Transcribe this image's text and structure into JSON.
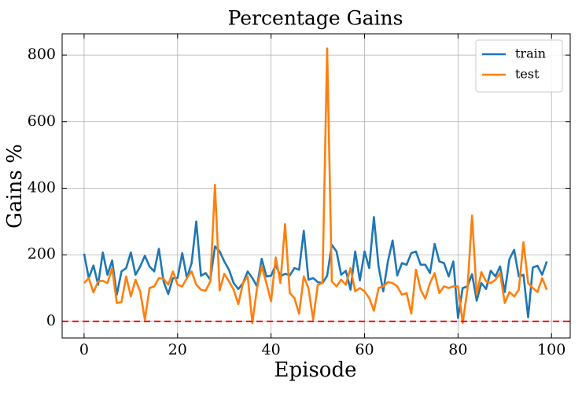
{
  "chart_data": {
    "type": "line",
    "title": "Percentage Gains",
    "xlabel": "Episode",
    "ylabel": "Gains %",
    "x": [
      0,
      1,
      2,
      3,
      4,
      5,
      6,
      7,
      8,
      9,
      10,
      11,
      12,
      13,
      14,
      15,
      16,
      17,
      18,
      19,
      20,
      21,
      22,
      23,
      24,
      25,
      26,
      27,
      28,
      29,
      30,
      31,
      32,
      33,
      34,
      35,
      36,
      37,
      38,
      39,
      40,
      41,
      42,
      43,
      44,
      45,
      46,
      47,
      48,
      49,
      50,
      51,
      52,
      53,
      54,
      55,
      56,
      57,
      58,
      59,
      60,
      61,
      62,
      63,
      64,
      65,
      66,
      67,
      68,
      69,
      70,
      71,
      72,
      73,
      74,
      75,
      76,
      77,
      78,
      79,
      80,
      81,
      82,
      83,
      84,
      85,
      86,
      87,
      88,
      89,
      90,
      91,
      92,
      93,
      94,
      95,
      96,
      97,
      98,
      99
    ],
    "series": [
      {
        "name": "train",
        "color": "#1f77b4",
        "values": [
          203,
          130,
          168,
          110,
          207,
          140,
          183,
          80,
          150,
          160,
          207,
          140,
          165,
          197,
          165,
          150,
          218,
          120,
          82,
          130,
          130,
          205,
          130,
          175,
          300,
          137,
          145,
          125,
          225,
          210,
          180,
          155,
          115,
          97,
          115,
          150,
          130,
          105,
          188,
          135,
          137,
          170,
          135,
          143,
          138,
          160,
          155,
          272,
          125,
          130,
          118,
          115,
          137,
          230,
          210,
          140,
          152,
          95,
          210,
          123,
          210,
          160,
          313,
          165,
          90,
          180,
          243,
          138,
          175,
          170,
          205,
          210,
          170,
          170,
          145,
          233,
          180,
          175,
          135,
          180,
          10,
          100,
          105,
          142,
          62,
          115,
          97,
          152,
          135,
          165,
          88,
          187,
          215,
          135,
          140,
          12,
          162,
          167,
          140,
          180
        ]
      },
      {
        "name": "test",
        "color": "#ff7f0e",
        "values": [
          115,
          130,
          87,
          120,
          122,
          115,
          160,
          55,
          58,
          135,
          75,
          125,
          90,
          5,
          100,
          105,
          130,
          128,
          110,
          150,
          110,
          105,
          130,
          150,
          110,
          95,
          92,
          120,
          410,
          93,
          143,
          120,
          95,
          52,
          115,
          135,
          -5,
          100,
          165,
          115,
          60,
          192,
          115,
          292,
          85,
          70,
          23,
          135,
          100,
          5,
          110,
          115,
          820,
          120,
          105,
          125,
          110,
          160,
          90,
          100,
          90,
          70,
          32,
          100,
          105,
          118,
          115,
          105,
          80,
          85,
          23,
          155,
          95,
          68,
          115,
          145,
          85,
          105,
          100,
          105,
          105,
          -5,
          95,
          318,
          80,
          148,
          120,
          115,
          125,
          145,
          55,
          88,
          75,
          95,
          238,
          115,
          100,
          88,
          130,
          95
        ]
      }
    ],
    "hline": {
      "value": 0,
      "color": "#ff0000"
    },
    "xlim": [
      -4.7,
      104
    ],
    "xticks": [
      0,
      20,
      40,
      60,
      80,
      100
    ],
    "ylim": [
      -50,
      864
    ],
    "yticks": [
      0,
      200,
      400,
      600,
      800
    ],
    "grid": true,
    "legend": "upper right"
  }
}
